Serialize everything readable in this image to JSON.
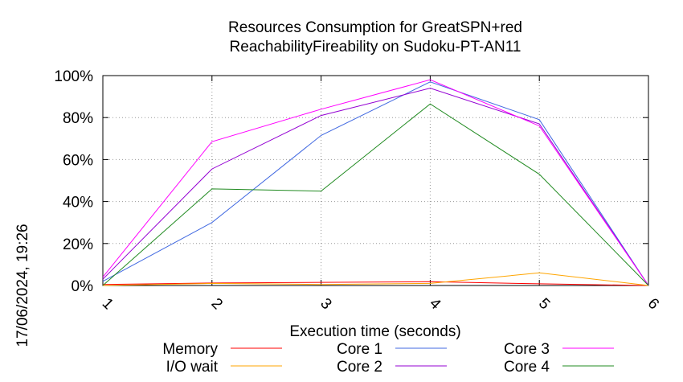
{
  "chart_data": {
    "type": "line",
    "title_lines": [
      "Resources Consumption for GreatSPN+red",
      "ReachabilityFireability on Sudoku-PT-AN11"
    ],
    "xlabel": "Execution time (seconds)",
    "ylabel": "",
    "side_label": "17/06/2024, 19:26",
    "x": [
      1,
      2,
      3,
      4,
      5,
      6
    ],
    "x_tick_labels": [
      "1",
      "2",
      "3",
      "4",
      "5",
      "6"
    ],
    "xlim": [
      1,
      6
    ],
    "ylim": [
      0,
      100
    ],
    "y_ticks": [
      0,
      20,
      40,
      60,
      80,
      100
    ],
    "y_tick_labels": [
      "0%",
      "20%",
      "40%",
      "60%",
      "80%",
      "100%"
    ],
    "grid": true,
    "legend_position": "bottom",
    "series": [
      {
        "name": "Memory",
        "color": "#ff0000",
        "values": [
          0.5,
          1.2,
          1.5,
          1.8,
          0.8,
          0
        ]
      },
      {
        "name": "I/O wait",
        "color": "#ffa500",
        "values": [
          0,
          1,
          0.5,
          1,
          6,
          0
        ]
      },
      {
        "name": "Core 1",
        "color": "#4169e1",
        "values": [
          2,
          30,
          71.5,
          97,
          79,
          0
        ]
      },
      {
        "name": "Core 2",
        "color": "#9400d3",
        "values": [
          3,
          55.5,
          81,
          94,
          77,
          0
        ]
      },
      {
        "name": "Core 3",
        "color": "#ff00ff",
        "values": [
          4,
          68.5,
          84,
          98,
          76,
          0
        ]
      },
      {
        "name": "Core 4",
        "color": "#228b22",
        "values": [
          0,
          46,
          45,
          86.5,
          53,
          0
        ]
      }
    ]
  }
}
